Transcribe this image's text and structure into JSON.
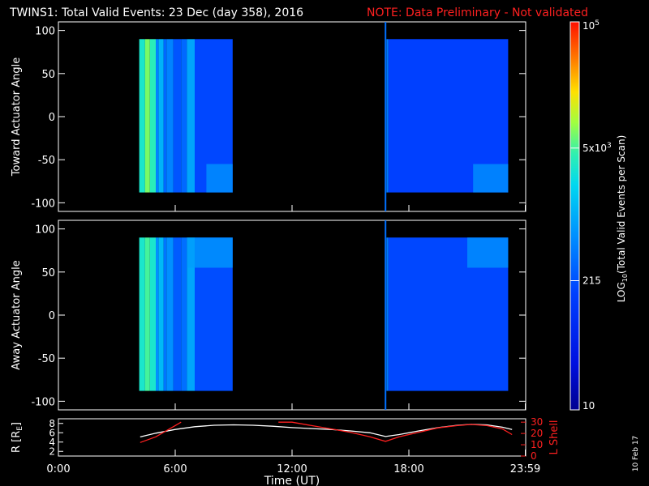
{
  "header": {
    "title": "TWINS1: Total Valid Events: 23 Dec (day 358), 2016",
    "note": "NOTE: Data Preliminary - Not validated",
    "note_color": "#ff2020"
  },
  "footer": {
    "date_stamp": "10 Feb 17"
  },
  "chart_data": [
    {
      "type": "heatmap",
      "panel": "toward",
      "title": "",
      "xlabel": "",
      "ylabel": "Toward Actuator Angle",
      "xlim": [
        0,
        24
      ],
      "ylim": [
        -110,
        110
      ],
      "y_ticks": [
        "100",
        "50",
        "0",
        "-50",
        "-100"
      ],
      "y_tick_values": [
        100,
        50,
        0,
        -50,
        -100
      ],
      "angle_range": [
        -88,
        90
      ],
      "coverage_hours": [
        [
          4.15,
          8.95
        ],
        [
          16.85,
          23.1
        ]
      ],
      "spike_hour": 16.8,
      "strips": [
        {
          "t0": 4.15,
          "t1": 4.45,
          "level": 3.5
        },
        {
          "t0": 4.45,
          "t1": 4.7,
          "level": 3.85
        },
        {
          "t0": 4.7,
          "t1": 5.0,
          "level": 3.6
        },
        {
          "t0": 5.0,
          "t1": 5.15,
          "level": 2.7
        },
        {
          "t0": 5.15,
          "t1": 5.4,
          "level": 3.05
        },
        {
          "t0": 5.4,
          "t1": 5.55,
          "level": 2.5
        },
        {
          "t0": 5.55,
          "t1": 5.9,
          "level": 2.7
        },
        {
          "t0": 5.9,
          "t1": 6.3,
          "level": 2.35
        },
        {
          "t0": 6.3,
          "t1": 6.6,
          "level": 2.5
        },
        {
          "t0": 6.6,
          "t1": 7.0,
          "level": 2.95
        },
        {
          "t0": 7.0,
          "t1": 8.95,
          "level": 2.25
        },
        {
          "t0": 16.85,
          "t1": 16.95,
          "level": 2.65
        },
        {
          "t0": 16.95,
          "t1": 23.1,
          "level": 2.2
        }
      ],
      "enhancements": [
        {
          "t0": 7.6,
          "t1": 8.95,
          "a0": -88,
          "a1": -55,
          "level": 2.85
        },
        {
          "t0": 21.3,
          "t1": 23.1,
          "a0": -88,
          "a1": -55,
          "level": 2.85
        }
      ]
    },
    {
      "type": "heatmap",
      "panel": "away",
      "title": "",
      "xlabel": "",
      "ylabel": "Away Actuator Angle",
      "xlim": [
        0,
        24
      ],
      "ylim": [
        -110,
        110
      ],
      "y_ticks": [
        "100",
        "50",
        "0",
        "-50",
        "-100"
      ],
      "y_tick_values": [
        100,
        50,
        0,
        -50,
        -100
      ],
      "angle_range": [
        -88,
        90
      ],
      "coverage_hours": [
        [
          4.15,
          8.95
        ],
        [
          16.85,
          23.1
        ]
      ],
      "spike_hour": 16.8,
      "strips": [
        {
          "t0": 4.15,
          "t1": 4.45,
          "level": 3.5
        },
        {
          "t0": 4.45,
          "t1": 4.7,
          "level": 3.7
        },
        {
          "t0": 4.7,
          "t1": 5.0,
          "level": 3.5
        },
        {
          "t0": 5.0,
          "t1": 5.15,
          "level": 2.8
        },
        {
          "t0": 5.15,
          "t1": 5.4,
          "level": 3.1
        },
        {
          "t0": 5.4,
          "t1": 5.55,
          "level": 2.6
        },
        {
          "t0": 5.55,
          "t1": 5.9,
          "level": 2.8
        },
        {
          "t0": 5.9,
          "t1": 6.3,
          "level": 2.4
        },
        {
          "t0": 6.3,
          "t1": 6.6,
          "level": 2.55
        },
        {
          "t0": 6.6,
          "t1": 7.0,
          "level": 2.95
        },
        {
          "t0": 7.0,
          "t1": 8.95,
          "level": 2.3
        },
        {
          "t0": 16.85,
          "t1": 16.95,
          "level": 2.65
        },
        {
          "t0": 16.95,
          "t1": 23.1,
          "level": 2.25
        }
      ],
      "enhancements": [
        {
          "t0": 6.6,
          "t1": 8.95,
          "a0": 55,
          "a1": 90,
          "level": 2.9
        },
        {
          "t0": 21.0,
          "t1": 23.1,
          "a0": 55,
          "a1": 90,
          "level": 2.85
        }
      ]
    },
    {
      "type": "line",
      "panel": "orbit",
      "title": "",
      "xlabel": "Time (UT)",
      "ylabel": "R [RE]",
      "ylabel_main": "R [R",
      "ylabel_sub": "E",
      "ylabel_end": "]",
      "y2label": "L Shell",
      "ylim": [
        1,
        9
      ],
      "y2lim": [
        0,
        33
      ],
      "xlim": [
        0,
        24
      ],
      "y_ticks": [
        "8",
        "6",
        "4",
        "2"
      ],
      "y_tick_values": [
        8,
        6,
        4,
        2
      ],
      "y2_ticks": [
        "30",
        "20",
        "10",
        "0"
      ],
      "y2_tick_values": [
        30,
        20,
        10,
        0
      ],
      "x_ticks": [
        "0:00",
        "6:00",
        "12:00",
        "18:00",
        "23:59"
      ],
      "x_tick_values": [
        0,
        6,
        12,
        18,
        23.98
      ],
      "series": [
        {
          "color": "#ffffff",
          "x": [
            4.2,
            5.0,
            6.0,
            7.0,
            8.0,
            9.0,
            10.0,
            11.0,
            12.0,
            13.0,
            14.0,
            15.0,
            16.0,
            16.8,
            17.5,
            18.5,
            19.5,
            20.5,
            21.2,
            22.0,
            22.8,
            23.3
          ],
          "y": [
            5.1,
            5.9,
            6.7,
            7.3,
            7.6,
            7.7,
            7.6,
            7.4,
            7.1,
            6.9,
            6.7,
            6.4,
            6.0,
            5.2,
            5.6,
            6.4,
            7.1,
            7.6,
            7.8,
            7.7,
            7.2,
            6.7
          ]
        },
        {
          "color": "#ff2020",
          "x": [
            4.2,
            5.0,
            6.0,
            6.3,
            null,
            11.3,
            12.0,
            13.0,
            14.0,
            15.0,
            16.0,
            16.8,
            17.5,
            18.5,
            19.5,
            20.5,
            21.2,
            22.0,
            22.8,
            23.3
          ],
          "y": [
            12,
            17,
            27,
            30,
            null,
            30,
            30,
            27,
            24,
            21,
            17,
            13,
            17,
            21,
            25,
            27,
            28,
            27,
            24,
            19
          ]
        }
      ]
    }
  ],
  "colorbar": {
    "label_main": "LOG",
    "label_sub": "10",
    "label_end": "(Total Valid  Events per Scan)",
    "ticks": [
      {
        "value": 5,
        "text": "10",
        "sup": "5"
      },
      {
        "value": 3.699,
        "text": "5x10",
        "sup": "3"
      },
      {
        "value": 2.332,
        "text": "215",
        "sup": ""
      },
      {
        "value": 1,
        "text": "10",
        "sup": ""
      }
    ],
    "range": [
      1,
      5
    ]
  }
}
